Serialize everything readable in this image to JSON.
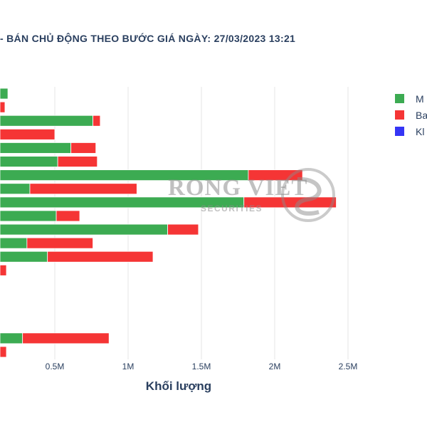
{
  "chart_data": {
    "type": "bar",
    "orientation": "horizontal",
    "stacked": true,
    "title": "- BÁN CHỦ ĐỘNG THEO BƯỚC GIÁ NGÀY: 27/03/2023 13:21",
    "xlabel": "Khối lượng",
    "xlim": [
      0,
      2.6
    ],
    "xticks": [
      {
        "value": 0.5,
        "label": "0.5M"
      },
      {
        "value": 1.0,
        "label": "1M"
      },
      {
        "value": 1.5,
        "label": "1.5M"
      },
      {
        "value": 2.0,
        "label": "2M"
      },
      {
        "value": 2.5,
        "label": "2.5M"
      }
    ],
    "x_units": "millions",
    "grid": true,
    "legend_position": "top-right",
    "series": [
      {
        "name": "M",
        "color": "#3cab52",
        "values": [
          0.18,
          0.04,
          0.76,
          0.05,
          0.61,
          0.52,
          1.82,
          0.33,
          1.79,
          0.51,
          1.27,
          0.31,
          0.45,
          0.0,
          0.05,
          0.06,
          0.06,
          0.08,
          0.28,
          0.0
        ]
      },
      {
        "name": "Ba",
        "color": "#f53535",
        "values": [
          0.0,
          0.12,
          0.05,
          0.45,
          0.17,
          0.27,
          0.37,
          0.73,
          0.63,
          0.16,
          0.21,
          0.45,
          0.72,
          0.17,
          0.01,
          0.0,
          0.02,
          0.05,
          0.59,
          0.17
        ]
      },
      {
        "name": "Kl",
        "color": "#3535f5",
        "values": [
          0,
          0,
          0,
          0,
          0,
          0,
          0,
          0,
          0,
          0,
          0,
          0,
          0,
          0,
          0,
          0,
          0,
          0,
          0,
          0
        ]
      }
    ],
    "watermark": {
      "main": "RONG VIET",
      "sub": "SECURITIES"
    }
  }
}
